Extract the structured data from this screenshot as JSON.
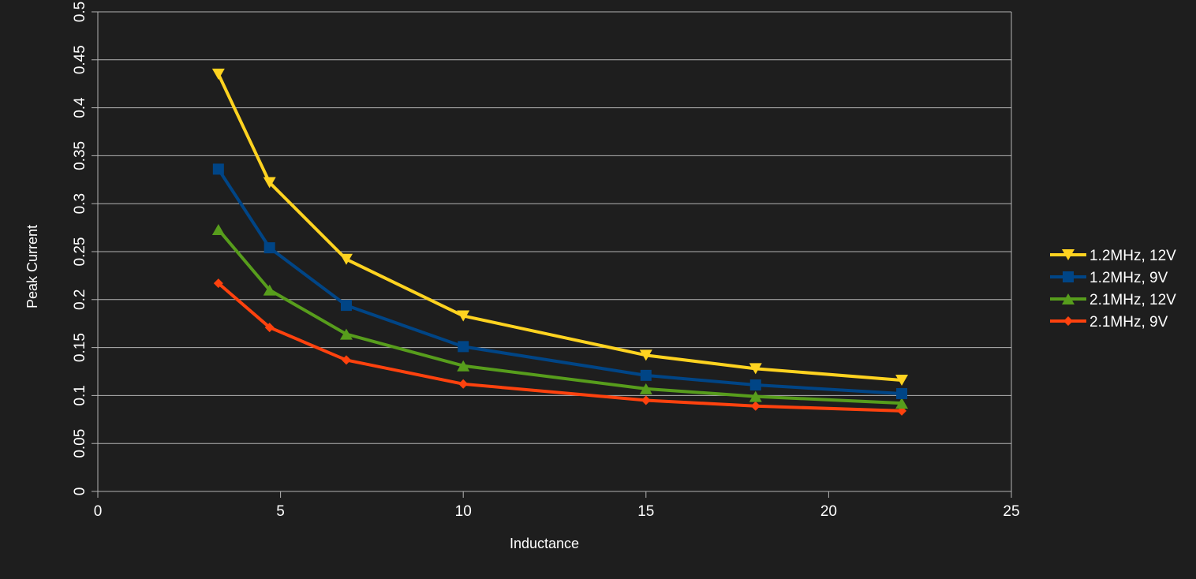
{
  "chart_data": {
    "type": "line",
    "xlabel": "Inductance",
    "ylabel": "Peak Current",
    "xlim": [
      0,
      25
    ],
    "ylim": [
      0,
      0.5
    ],
    "x_ticks": [
      0,
      5,
      10,
      15,
      20,
      25
    ],
    "x_tick_labels": [
      "0",
      "5",
      "10",
      "15",
      "20",
      "25"
    ],
    "y_ticks": [
      0,
      0.05,
      0.1,
      0.15,
      0.2,
      0.25,
      0.3,
      0.35,
      0.4,
      0.45,
      0.5
    ],
    "y_tick_labels": [
      "0",
      "0.05",
      "0.1",
      "0.15",
      "0.2",
      "0.25",
      "0.3",
      "0.35",
      "0.4",
      "0.45",
      "0.5"
    ],
    "grid": "horizontal",
    "legend_position": "right",
    "x": [
      3.3,
      4.7,
      6.8,
      10,
      15,
      18,
      22
    ],
    "series": [
      {
        "name": "1.2MHz, 12V",
        "color": "#ffd320",
        "marker": "triangle-down",
        "values": [
          0.435,
          0.322,
          0.242,
          0.183,
          0.142,
          0.128,
          0.116
        ]
      },
      {
        "name": "1.2MHz, 9V",
        "color": "#004586",
        "marker": "square",
        "values": [
          0.336,
          0.254,
          0.194,
          0.151,
          0.121,
          0.111,
          0.102
        ]
      },
      {
        "name": "2.1MHz, 12V",
        "color": "#579d1c",
        "marker": "triangle-up",
        "values": [
          0.273,
          0.21,
          0.164,
          0.131,
          0.107,
          0.099,
          0.092
        ]
      },
      {
        "name": "2.1MHz, 9V",
        "color": "#ff420e",
        "marker": "diamond",
        "values": [
          0.217,
          0.171,
          0.137,
          0.112,
          0.095,
          0.089,
          0.084
        ]
      }
    ]
  }
}
